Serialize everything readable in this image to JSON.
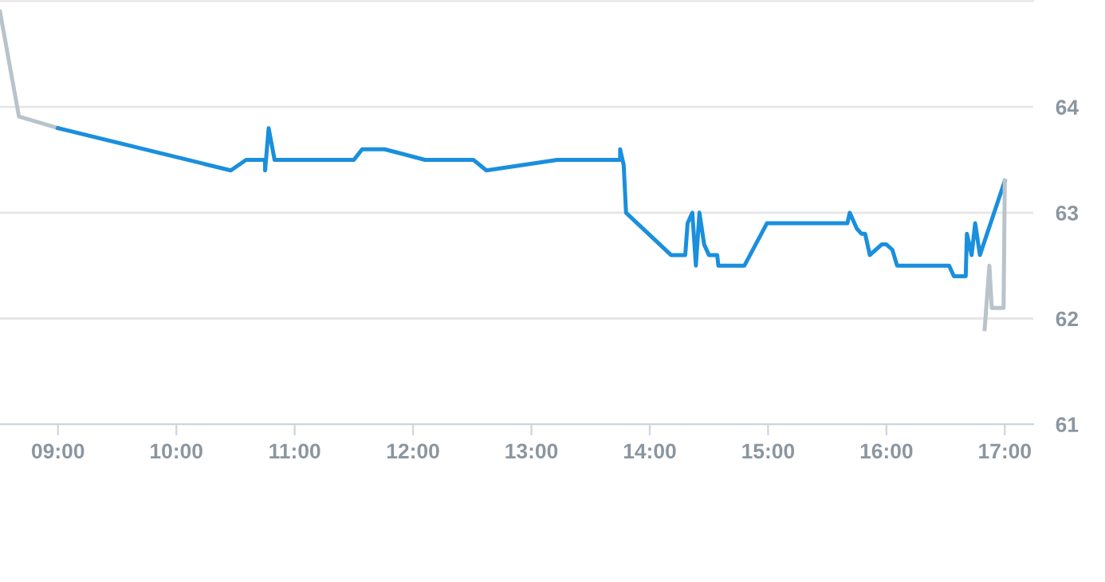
{
  "chart_data": {
    "type": "line",
    "xlim": [
      8.51,
      17.24
    ],
    "ylim": [
      61,
      65
    ],
    "xticks": [
      {
        "value": 9,
        "label": "09:00"
      },
      {
        "value": 10,
        "label": "10:00"
      },
      {
        "value": 11,
        "label": "11:00"
      },
      {
        "value": 12,
        "label": "12:00"
      },
      {
        "value": 13,
        "label": "13:00"
      },
      {
        "value": 14,
        "label": "14:00"
      },
      {
        "value": 15,
        "label": "15:00"
      },
      {
        "value": 16,
        "label": "16:00"
      },
      {
        "value": 17,
        "label": "17:00"
      }
    ],
    "yticks": [
      61,
      62,
      63,
      64
    ],
    "grid": "y",
    "marker": "none",
    "line_style": "solid",
    "series": [
      {
        "color": "#b9c3ca",
        "x": [
          8.51,
          8.67,
          9.0
        ],
        "values": [
          64.9,
          63.91,
          63.8
        ]
      },
      {
        "color": "#1a8fdd",
        "x": [
          9.0,
          10.46,
          10.59,
          10.75,
          10.75,
          10.78,
          10.83,
          11.5,
          11.57,
          11.76,
          12.1,
          12.51,
          12.62,
          13.22,
          13.75,
          13.75,
          13.78,
          13.8,
          14.18,
          14.3,
          14.32,
          14.36,
          14.39,
          14.42,
          14.46,
          14.5,
          14.57,
          14.58,
          14.8,
          14.99,
          15.67,
          15.69,
          15.75,
          15.79,
          15.82,
          15.84,
          15.86,
          15.96,
          16.0,
          16.05,
          16.09,
          16.53,
          16.57,
          16.67,
          16.68,
          16.72,
          16.75,
          16.79,
          17.0
        ],
        "values": [
          63.8,
          63.4,
          63.5,
          63.5,
          63.4,
          63.8,
          63.5,
          63.5,
          63.6,
          63.6,
          63.5,
          63.5,
          63.4,
          63.5,
          63.5,
          63.6,
          63.45,
          63.0,
          62.6,
          62.6,
          62.9,
          63.0,
          62.5,
          63.0,
          62.7,
          62.6,
          62.6,
          62.5,
          62.5,
          62.9,
          62.9,
          63.0,
          62.85,
          62.8,
          62.8,
          62.7,
          62.6,
          62.7,
          62.7,
          62.65,
          62.5,
          62.5,
          62.4,
          62.4,
          62.8,
          62.6,
          62.9,
          62.6,
          63.3
        ]
      },
      {
        "color": "#b9c3ca",
        "x": [
          16.83,
          16.87,
          16.89,
          16.99,
          17.0
        ],
        "values": [
          61.9,
          62.5,
          62.1,
          62.1,
          63.3
        ]
      }
    ]
  }
}
